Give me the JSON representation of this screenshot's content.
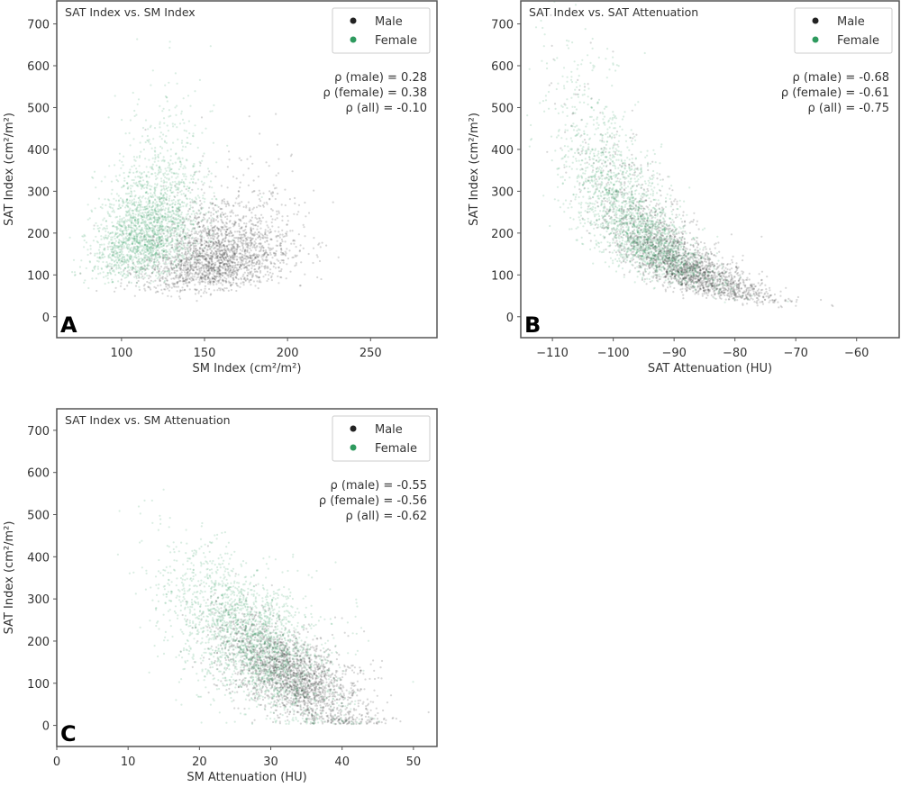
{
  "chart_data": [
    {
      "type": "scatter",
      "panel_label": "A",
      "title": "SAT Index vs. SM Index",
      "xlabel": "SM Index (cm²/m²)",
      "ylabel": "SAT Index (cm²/m²)",
      "xlim": [
        61,
        290
      ],
      "ylim": [
        -50,
        755
      ],
      "xticks": [
        100,
        150,
        200,
        250
      ],
      "yticks": [
        0,
        100,
        200,
        300,
        400,
        500,
        600,
        700
      ],
      "legend": {
        "placement": "top-right",
        "entries": [
          "Male",
          "Female"
        ]
      },
      "annotations": [
        "ρ (male) = 0.28",
        "ρ (female) = 0.38",
        "ρ (all) = -0.10"
      ],
      "series": [
        {
          "name": "Male",
          "color": "#222222",
          "model": "normal",
          "x_mean": 158,
          "x_sd": 22,
          "y_mean": 140,
          "y_sd": 65,
          "corr": 0.28,
          "n": 2200
        },
        {
          "name": "Female",
          "color": "#2e9a5e",
          "model": "normal",
          "x_mean": 116,
          "x_sd": 16,
          "y_mean": 215,
          "y_sd": 95,
          "corr": 0.38,
          "n": 2200
        }
      ]
    },
    {
      "type": "scatter",
      "panel_label": "B",
      "title": "SAT Index vs. SAT Attenuation",
      "xlabel": "SAT Attenuation (HU)",
      "ylabel": "SAT Index (cm²/m²)",
      "xlim": [
        -115.2,
        -53
      ],
      "ylim": [
        -50,
        755
      ],
      "xticks": [
        -110,
        -100,
        -90,
        -80,
        -70,
        -60
      ],
      "yticks": [
        0,
        100,
        200,
        300,
        400,
        500,
        600,
        700
      ],
      "legend": {
        "placement": "top-right",
        "entries": [
          "Male",
          "Female"
        ]
      },
      "annotations": [
        "ρ (male) = -0.68",
        "ρ (female) = -0.61",
        "ρ (all) = -0.75"
      ],
      "series": [
        {
          "name": "Male",
          "color": "#222222",
          "model": "exp",
          "x_mean": -89,
          "x_sd": 7,
          "a": 135,
          "k": 0.065,
          "x0": -90,
          "noise": 0.3,
          "n": 2200
        },
        {
          "name": "Female",
          "color": "#2e9a5e",
          "model": "exp",
          "x_mean": -97,
          "x_sd": 6,
          "a": 150,
          "k": 0.06,
          "x0": -90,
          "noise": 0.32,
          "n": 2200
        }
      ]
    },
    {
      "type": "scatter",
      "panel_label": "C",
      "title": "SAT Index vs. SM Attenuation",
      "xlabel": "SM Attenuation (HU)",
      "ylabel": "SAT Index (cm²/m²)",
      "xlim": [
        0,
        53.3
      ],
      "ylim": [
        -50,
        751
      ],
      "xticks": [
        0,
        10,
        20,
        30,
        40,
        50
      ],
      "yticks": [
        0,
        100,
        200,
        300,
        400,
        500,
        600,
        700
      ],
      "legend": {
        "placement": "top-right",
        "entries": [
          "Male",
          "Female"
        ]
      },
      "annotations": [
        "ρ (male) = -0.55",
        "ρ (female) = -0.56",
        "ρ (all) = -0.62"
      ],
      "series": [
        {
          "name": "Male",
          "color": "#222222",
          "model": "linear",
          "x_mean": 33,
          "x_sd": 5,
          "y_at_mean": 120,
          "slope": -8,
          "y_sd": 45,
          "n": 2200
        },
        {
          "name": "Female",
          "color": "#2e9a5e",
          "model": "linear",
          "x_mean": 27,
          "x_sd": 6,
          "y_at_mean": 210,
          "slope": -9,
          "y_sd": 70,
          "n": 2200
        }
      ]
    }
  ]
}
